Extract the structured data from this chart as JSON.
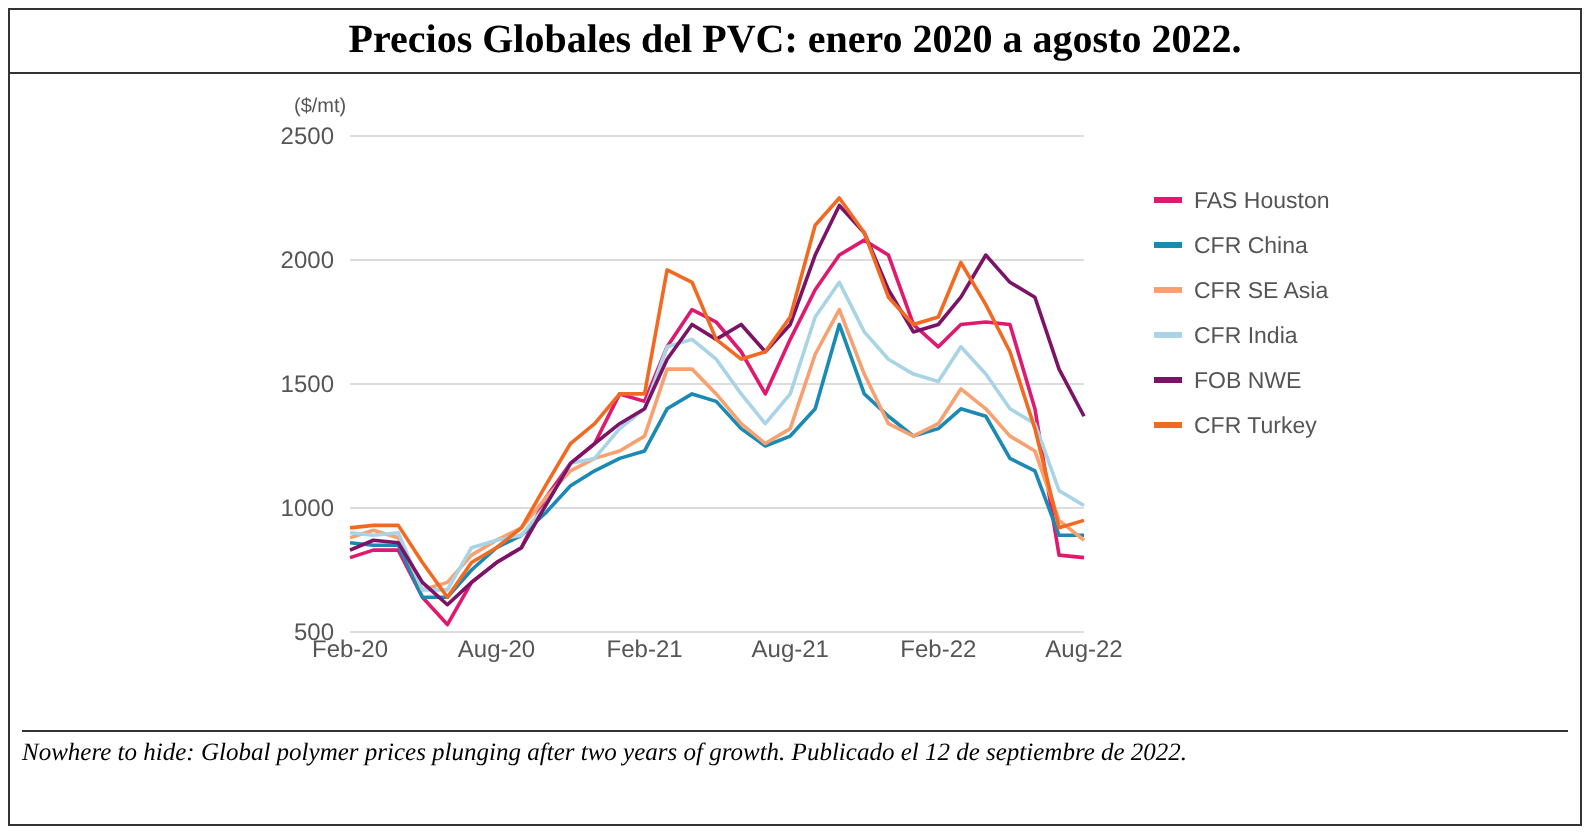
{
  "chart_data": {
    "type": "line",
    "title": "Precios Globales del PVC: enero 2020 a agosto 2022.",
    "ylabel": "($/mt)",
    "x": [
      "2020-02",
      "2020-03",
      "2020-04",
      "2020-05",
      "2020-06",
      "2020-07",
      "2020-08",
      "2020-09",
      "2020-10",
      "2020-11",
      "2020-12",
      "2021-01",
      "2021-02",
      "2021-03",
      "2021-04",
      "2021-05",
      "2021-06",
      "2021-07",
      "2021-08",
      "2021-09",
      "2021-10",
      "2021-11",
      "2021-12",
      "2022-01",
      "2022-02",
      "2022-03",
      "2022-04",
      "2022-05",
      "2022-06",
      "2022-07",
      "2022-08"
    ],
    "series": [
      {
        "name": "FAS Houston",
        "color": "#e0196e",
        "values": [
          800,
          830,
          830,
          640,
          530,
          700,
          780,
          840,
          1040,
          1180,
          1260,
          1460,
          1430,
          1650,
          1800,
          1750,
          1630,
          1460,
          1680,
          1880,
          2020,
          2080,
          2020,
          1740,
          1650,
          1740,
          1750,
          1740,
          1400,
          810,
          800
        ]
      },
      {
        "name": "CFR China",
        "color": "#1a8ab5",
        "values": [
          860,
          850,
          850,
          640,
          640,
          750,
          840,
          890,
          980,
          1090,
          1150,
          1200,
          1230,
          1400,
          1460,
          1430,
          1320,
          1250,
          1290,
          1400,
          1740,
          1460,
          1370,
          1290,
          1320,
          1400,
          1370,
          1200,
          1150,
          890,
          890
        ]
      },
      {
        "name": "CFR SE Asia",
        "color": "#f7a070",
        "values": [
          880,
          910,
          880,
          670,
          700,
          810,
          870,
          920,
          1040,
          1150,
          1200,
          1230,
          1290,
          1560,
          1560,
          1460,
          1340,
          1260,
          1320,
          1620,
          1800,
          1540,
          1340,
          1290,
          1340,
          1480,
          1400,
          1290,
          1230,
          950,
          870
        ]
      },
      {
        "name": "CFR India",
        "color": "#a8d4e6",
        "values": [
          900,
          890,
          900,
          670,
          670,
          840,
          870,
          890,
          1010,
          1180,
          1200,
          1320,
          1400,
          1650,
          1680,
          1600,
          1460,
          1340,
          1460,
          1770,
          1910,
          1710,
          1600,
          1540,
          1510,
          1650,
          1540,
          1400,
          1340,
          1070,
          1010
        ]
      },
      {
        "name": "FOB NWE",
        "color": "#7b1366",
        "values": [
          830,
          870,
          860,
          700,
          610,
          700,
          780,
          840,
          1010,
          1180,
          1260,
          1340,
          1400,
          1600,
          1740,
          1680,
          1740,
          1630,
          1740,
          2020,
          2220,
          2110,
          1880,
          1710,
          1740,
          1850,
          2020,
          1910,
          1850,
          1560,
          1370
        ]
      },
      {
        "name": "CFR Turkey",
        "color": "#f26a21",
        "values": [
          920,
          930,
          930,
          780,
          640,
          780,
          840,
          920,
          1090,
          1260,
          1340,
          1460,
          1460,
          1960,
          1910,
          1680,
          1600,
          1630,
          1770,
          2140,
          2250,
          2110,
          1850,
          1740,
          1770,
          1990,
          1820,
          1630,
          1320,
          920,
          950
        ]
      }
    ],
    "xlim": [
      "2020-02",
      "2022-08"
    ],
    "xticks": [
      {
        "value": "2020-02",
        "label": "Feb-20"
      },
      {
        "value": "2020-08",
        "label": "Aug-20"
      },
      {
        "value": "2021-02",
        "label": "Feb-21"
      },
      {
        "value": "2021-08",
        "label": "Aug-21"
      },
      {
        "value": "2022-02",
        "label": "Feb-22"
      },
      {
        "value": "2022-08",
        "label": "Aug-22"
      }
    ],
    "ylim": [
      500,
      2500
    ],
    "yticks": [
      500,
      1000,
      1500,
      2000,
      2500
    ],
    "grid": "y",
    "legend": "right",
    "line_style": "solid",
    "marker": "none",
    "annotations": [
      "Nowhere to hide: Global polymer prices plunging after two years of growth. Publicado el 12 de septiembre de 2022."
    ]
  }
}
